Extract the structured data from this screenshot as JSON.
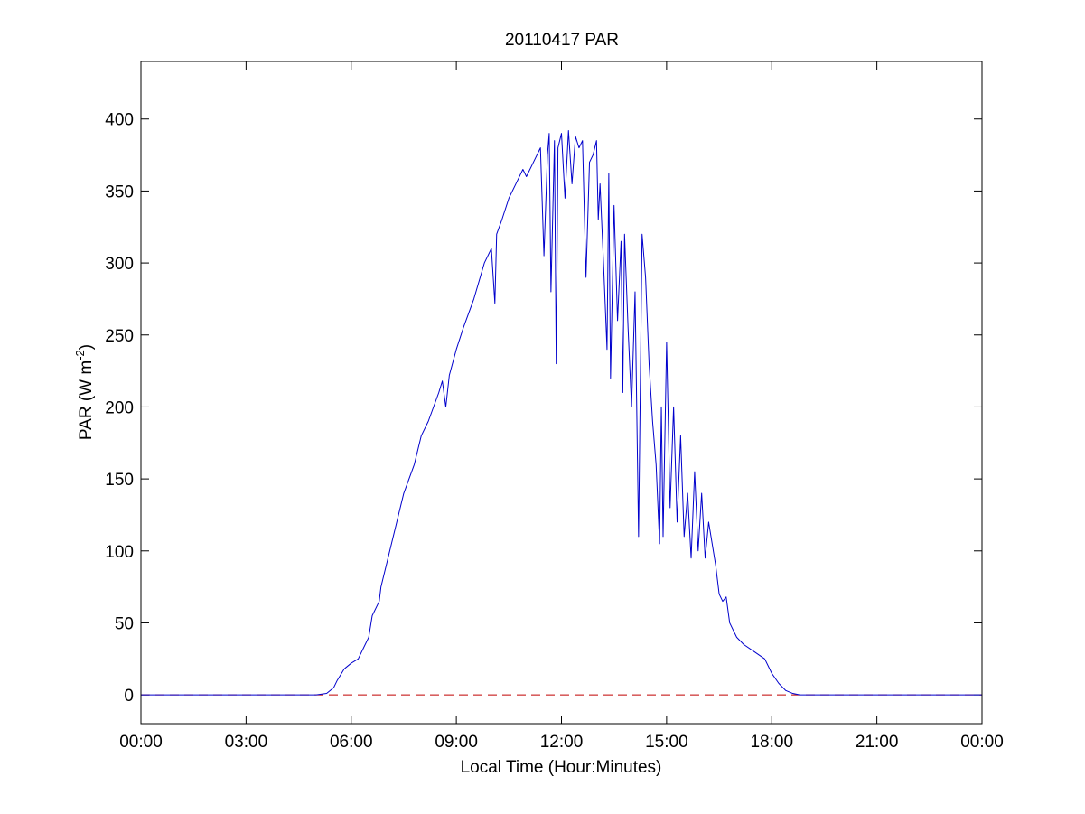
{
  "chart_data": {
    "type": "line",
    "title": "20110417 PAR",
    "xlabel": "Local Time (Hour:Minutes)",
    "ylabel_main": "PAR (W m",
    "ylabel_sup": "-2",
    "ylabel_close": ")",
    "xlim": [
      0,
      24
    ],
    "ylim": [
      -20,
      440
    ],
    "x_unit": "hours",
    "x_ticks": [
      0,
      3,
      6,
      9,
      12,
      15,
      18,
      21,
      24
    ],
    "x_tick_labels": [
      "00:00",
      "03:00",
      "06:00",
      "09:00",
      "12:00",
      "15:00",
      "18:00",
      "21:00",
      "00:00"
    ],
    "y_ticks": [
      0,
      50,
      100,
      150,
      200,
      250,
      300,
      350,
      400
    ],
    "y_tick_labels": [
      "0",
      "50",
      "100",
      "150",
      "200",
      "250",
      "300",
      "350",
      "400"
    ],
    "grid": false,
    "reference_line": {
      "y": 0,
      "color": "#c00000",
      "style": "dashed"
    },
    "series": [
      {
        "color": "#0000cc",
        "x": [
          0,
          5.0,
          5.3,
          5.5,
          5.6,
          5.8,
          6.0,
          6.2,
          6.5,
          6.6,
          6.8,
          6.85,
          7.0,
          7.3,
          7.5,
          7.8,
          8.0,
          8.2,
          8.5,
          8.6,
          8.7,
          8.8,
          9.0,
          9.2,
          9.5,
          9.8,
          10.0,
          10.1,
          10.15,
          10.3,
          10.5,
          10.7,
          10.9,
          11.0,
          11.2,
          11.4,
          11.5,
          11.6,
          11.65,
          11.7,
          11.8,
          11.85,
          11.9,
          12.0,
          12.1,
          12.2,
          12.3,
          12.4,
          12.5,
          12.6,
          12.7,
          12.8,
          12.9,
          13.0,
          13.05,
          13.1,
          13.2,
          13.3,
          13.35,
          13.4,
          13.5,
          13.6,
          13.7,
          13.75,
          13.8,
          13.9,
          14.0,
          14.1,
          14.2,
          14.3,
          14.4,
          14.5,
          14.6,
          14.7,
          14.8,
          14.85,
          14.9,
          15.0,
          15.1,
          15.2,
          15.3,
          15.4,
          15.5,
          15.6,
          15.7,
          15.8,
          15.9,
          16.0,
          16.1,
          16.2,
          16.3,
          16.4,
          16.5,
          16.6,
          16.7,
          16.8,
          17.0,
          17.2,
          17.5,
          17.8,
          18.0,
          18.2,
          18.4,
          18.6,
          18.8,
          19.0,
          24
        ],
        "y": [
          0,
          0,
          1,
          5,
          10,
          18,
          22,
          25,
          40,
          55,
          65,
          75,
          90,
          120,
          140,
          160,
          180,
          190,
          210,
          218,
          200,
          222,
          240,
          255,
          275,
          300,
          310,
          272,
          320,
          330,
          345,
          355,
          365,
          360,
          370,
          380,
          305,
          375,
          390,
          280,
          385,
          230,
          380,
          390,
          345,
          392,
          355,
          388,
          380,
          385,
          290,
          370,
          375,
          385,
          330,
          355,
          300,
          240,
          362,
          220,
          340,
          260,
          315,
          210,
          320,
          255,
          200,
          280,
          110,
          320,
          290,
          230,
          190,
          160,
          105,
          200,
          110,
          245,
          130,
          200,
          120,
          180,
          110,
          140,
          95,
          155,
          100,
          140,
          95,
          120,
          105,
          90,
          70,
          65,
          68,
          50,
          40,
          35,
          30,
          25,
          15,
          8,
          3,
          1,
          0,
          0,
          0
        ]
      }
    ]
  }
}
